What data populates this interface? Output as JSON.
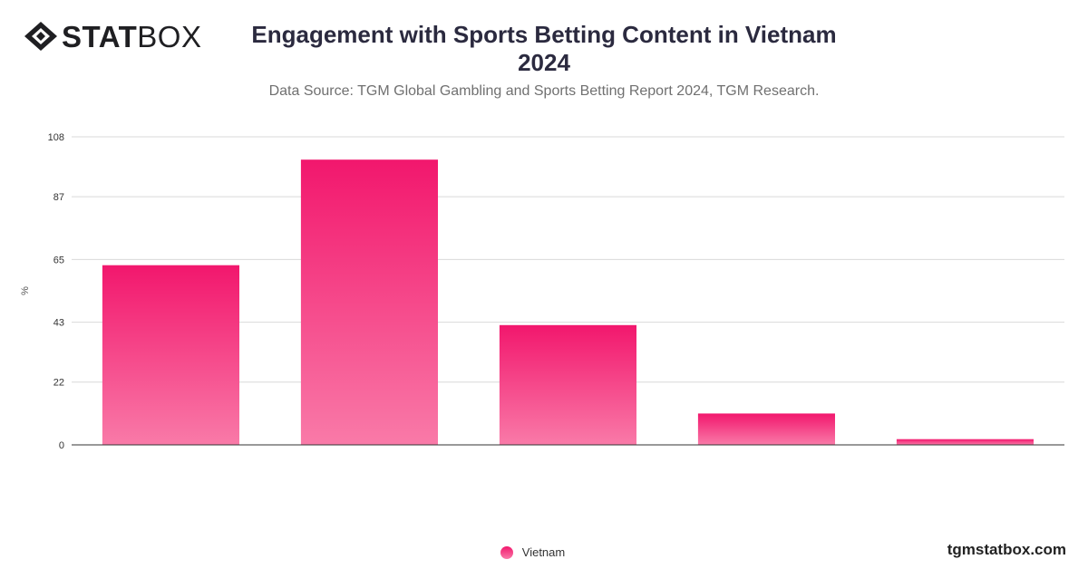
{
  "brand": {
    "logo_bold": "STAT",
    "logo_light": "BOX",
    "site": "tgmstatbox.com"
  },
  "header": {
    "title_line1": "Engagement with Sports Betting Content in Vietnam",
    "title_line2": "2024",
    "subtitle": "Data Source: TGM Global Gambling and Sports Betting Report 2024, TGM Research."
  },
  "colors": {
    "bar_top": "#f2176d",
    "bar_bottom": "#f97aa8",
    "grid": "#d9d9d9",
    "axis": "#333333"
  },
  "chart_data": {
    "type": "bar",
    "title": "Engagement with Sports Betting Content in Vietnam 2024",
    "ylabel": "%",
    "xlabel": "",
    "ylim": [
      0,
      108
    ],
    "yticks": [
      0,
      22,
      43,
      65,
      87,
      108
    ],
    "categories": [
      "",
      "",
      "",
      "",
      ""
    ],
    "series": [
      {
        "name": "Vietnam",
        "values": [
          63,
          100,
          42,
          11,
          2
        ]
      }
    ],
    "grid": true,
    "legend_position": "bottom-center"
  }
}
